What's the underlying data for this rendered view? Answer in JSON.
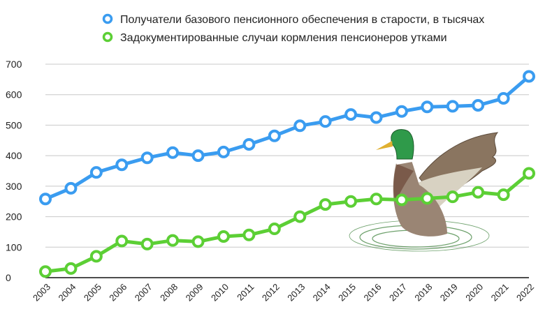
{
  "chart_data": {
    "type": "line",
    "title": "",
    "xlabel": "",
    "ylabel": "",
    "categories": [
      "2003",
      "2004",
      "2005",
      "2006",
      "2007",
      "2008",
      "2009",
      "2010",
      "2011",
      "2012",
      "2013",
      "2014",
      "2015",
      "2016",
      "2017",
      "2018",
      "2019",
      "2020",
      "2021",
      "2022"
    ],
    "ylim": [
      0,
      700
    ],
    "yticks": [
      "0",
      "100",
      "200",
      "300",
      "400",
      "500",
      "600",
      "700"
    ],
    "grid": true,
    "legend_position": "top-right",
    "series": [
      {
        "name": "Получатели базового пенсионного обеспечения в старости, в тысячах",
        "color": "#3a9cf0",
        "values": [
          258,
          293,
          345,
          370,
          393,
          410,
          400,
          412,
          437,
          465,
          498,
          512,
          535,
          525,
          545,
          560,
          562,
          565,
          588,
          660
        ]
      },
      {
        "name": "Задокументированные случаи кормления пенсионеров утками",
        "color": "#5ccf35",
        "values": [
          20,
          30,
          70,
          120,
          110,
          122,
          118,
          135,
          140,
          160,
          200,
          240,
          250,
          258,
          255,
          260,
          265,
          280,
          272,
          342
        ]
      }
    ],
    "illustration": "mallard-duck"
  }
}
